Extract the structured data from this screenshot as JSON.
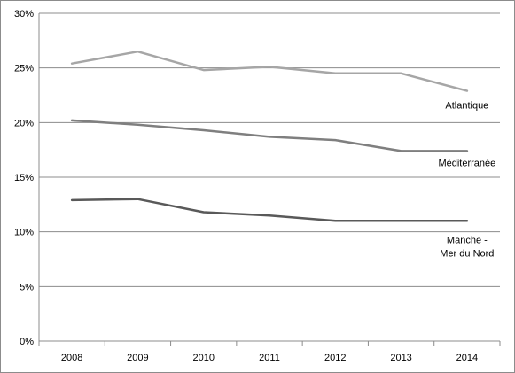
{
  "chart_data": {
    "type": "line",
    "title": "",
    "xlabel": "",
    "ylabel": "",
    "categories": [
      "2008",
      "2009",
      "2010",
      "2011",
      "2012",
      "2013",
      "2014"
    ],
    "ylim": [
      0,
      30
    ],
    "yticks": [
      "0%",
      "5%",
      "10%",
      "15%",
      "20%",
      "25%",
      "30%"
    ],
    "grid": true,
    "legend": "inline-labels",
    "series": [
      {
        "name": "Atlantique",
        "label_lines": [
          "Atlantique"
        ],
        "color": "#a6a6a6",
        "values": [
          25.4,
          26.5,
          24.8,
          25.1,
          24.5,
          24.5,
          22.9
        ]
      },
      {
        "name": "Méditerranée",
        "label_lines": [
          "Méditerranée"
        ],
        "color": "#7f7f7f",
        "values": [
          20.2,
          19.8,
          19.3,
          18.7,
          18.4,
          17.4,
          17.4
        ]
      },
      {
        "name": "Manche - Mer du Nord",
        "label_lines": [
          "Manche -",
          "Mer du Nord"
        ],
        "color": "#595959",
        "values": [
          12.9,
          13.0,
          11.8,
          11.5,
          11.0,
          11.0,
          11.0
        ]
      }
    ]
  }
}
